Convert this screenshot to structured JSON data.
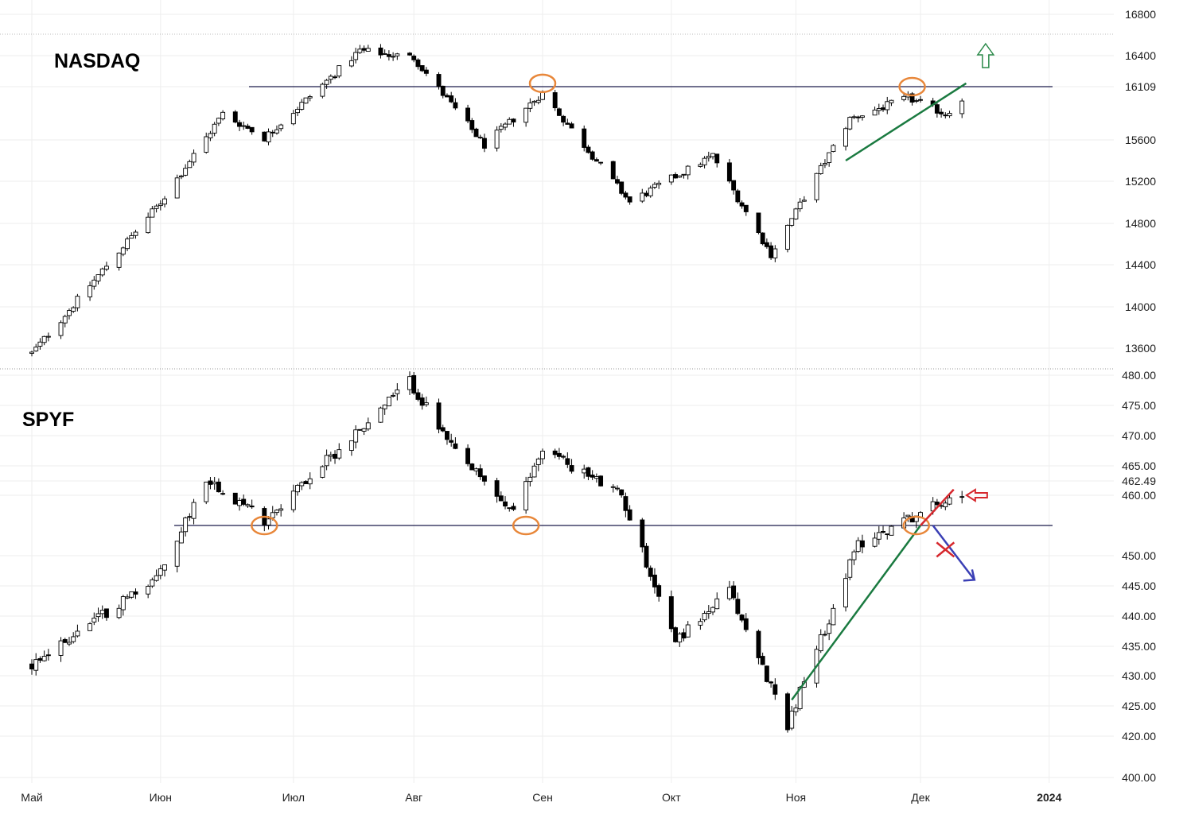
{
  "chart_data": [
    {
      "type": "candlestick",
      "title": "NASDAQ",
      "ylim": [
        13450,
        16850
      ],
      "y_ticks": [
        "16800",
        "16400",
        "16109",
        "15600",
        "15200",
        "14800",
        "14400",
        "14000",
        "13600"
      ],
      "tick_values": [
        16800,
        16400,
        16109,
        15600,
        15200,
        14800,
        14400,
        14000,
        13600
      ],
      "resistance_level": 16109,
      "segments": [
        {
          "start": "2023-05-01",
          "end": "2023-06-01",
          "from": 13550,
          "to": 15000
        },
        {
          "start": "2023-06-01",
          "end": "2023-06-16",
          "from": 15000,
          "to": 15850
        },
        {
          "start": "2023-06-16",
          "end": "2023-06-26",
          "from": 15850,
          "to": 15620
        },
        {
          "start": "2023-06-26",
          "end": "2023-07-19",
          "from": 15620,
          "to": 16450
        },
        {
          "start": "2023-07-19",
          "end": "2023-08-01",
          "from": 16450,
          "to": 16380
        },
        {
          "start": "2023-08-01",
          "end": "2023-08-18",
          "from": 16380,
          "to": 15550
        },
        {
          "start": "2023-08-18",
          "end": "2023-09-01",
          "from": 15550,
          "to": 16050
        },
        {
          "start": "2023-09-01",
          "end": "2023-09-22",
          "from": 16050,
          "to": 15000
        },
        {
          "start": "2023-09-22",
          "end": "2023-10-12",
          "from": 15000,
          "to": 15450
        },
        {
          "start": "2023-10-12",
          "end": "2023-10-26",
          "from": 15450,
          "to": 14500
        },
        {
          "start": "2023-10-26",
          "end": "2023-11-14",
          "from": 14500,
          "to": 15800
        },
        {
          "start": "2023-11-14",
          "end": "2023-11-28",
          "from": 15800,
          "to": 16000
        },
        {
          "start": "2023-11-28",
          "end": "2023-12-07",
          "from": 16000,
          "to": 15850
        },
        {
          "start": "2023-12-07",
          "end": "2023-12-12",
          "from": 15850,
          "to": 16030
        }
      ],
      "trendline": {
        "from": {
          "date": "2023-11-13",
          "value": 15400
        },
        "to": {
          "date": "2023-12-12",
          "value": 16140
        }
      },
      "circles": [
        {
          "date": "2023-09-01",
          "value": 16140
        },
        {
          "date": "2023-11-29",
          "value": 16109
        }
      ],
      "arrow_up": {
        "date": "2023-12-14",
        "value": 16109
      }
    },
    {
      "type": "candlestick",
      "title": "SPYF",
      "ylim": [
        398.0,
        481.5
      ],
      "y_ticks": [
        "480.00",
        "475.00",
        "470.00",
        "465.00",
        "462.49",
        "460.00",
        "450.00",
        "445.00",
        "440.00",
        "435.00",
        "430.00",
        "425.00",
        "420.00",
        "400.00"
      ],
      "tick_values": [
        480,
        475,
        470,
        465,
        462.49,
        460,
        450,
        445,
        440,
        435,
        430,
        425,
        420,
        400
      ],
      "support_level": 455,
      "segments": [
        {
          "start": "2023-05-01",
          "end": "2023-06-01",
          "from": 432,
          "to": 447
        },
        {
          "start": "2023-06-01",
          "end": "2023-06-12",
          "from": 447,
          "to": 463
        },
        {
          "start": "2023-06-12",
          "end": "2023-06-26",
          "from": 463,
          "to": 456
        },
        {
          "start": "2023-06-26",
          "end": "2023-07-31",
          "from": 456,
          "to": 479
        },
        {
          "start": "2023-07-31",
          "end": "2023-08-10",
          "from": 479,
          "to": 468
        },
        {
          "start": "2023-08-10",
          "end": "2023-08-25",
          "from": 468,
          "to": 457
        },
        {
          "start": "2023-08-25",
          "end": "2023-09-01",
          "from": 457,
          "to": 468
        },
        {
          "start": "2023-09-01",
          "end": "2023-09-20",
          "from": 468,
          "to": 460
        },
        {
          "start": "2023-09-20",
          "end": "2023-10-03",
          "from": 460,
          "to": 436
        },
        {
          "start": "2023-10-03",
          "end": "2023-10-16",
          "from": 436,
          "to": 444
        },
        {
          "start": "2023-10-16",
          "end": "2023-10-30",
          "from": 444,
          "to": 422
        },
        {
          "start": "2023-10-30",
          "end": "2023-11-16",
          "from": 422,
          "to": 452
        },
        {
          "start": "2023-11-16",
          "end": "2023-12-12",
          "from": 452,
          "to": 461
        }
      ],
      "trendline": {
        "from": {
          "date": "2023-10-31",
          "value": 426
        },
        "to": {
          "date": "2023-12-01",
          "value": 455
        }
      },
      "red_line": {
        "from": {
          "date": "2023-12-01",
          "value": 455
        },
        "to": {
          "date": "2023-12-09",
          "value": 461
        }
      },
      "blue_arrow": {
        "from": {
          "date": "2023-12-04",
          "value": 455
        },
        "to": {
          "date": "2023-12-14",
          "value": 446
        }
      },
      "cross": {
        "date": "2023-12-07",
        "value": 451
      },
      "circles": [
        {
          "date": "2023-06-26",
          "value": 455
        },
        {
          "date": "2023-08-28",
          "value": 455
        },
        {
          "date": "2023-11-30",
          "value": 455
        }
      ],
      "arrow_left": {
        "date": "2023-12-14",
        "value": 460
      }
    }
  ],
  "x_axis": {
    "labels": [
      {
        "text": "Май",
        "date": "2023-05-01"
      },
      {
        "text": "Июн",
        "date": "2023-06-01"
      },
      {
        "text": "Июл",
        "date": "2023-07-03"
      },
      {
        "text": "Авг",
        "date": "2023-08-01"
      },
      {
        "text": "Сен",
        "date": "2023-09-01"
      },
      {
        "text": "Окт",
        "date": "2023-10-02"
      },
      {
        "text": "Ноя",
        "date": "2023-11-01"
      },
      {
        "text": "Дек",
        "date": "2023-12-01"
      },
      {
        "text": "2024",
        "date": "2024-01-01"
      }
    ]
  },
  "colors": {
    "background": "#ffffff",
    "candle_up_body": "#ffffff",
    "candle_down_body": "#000000",
    "wick": "#000000",
    "level_line": "#1a1a4a",
    "trendline": "#1a7a40",
    "circle": "#e8873a",
    "arrow_up": "#2b8a4a",
    "arrow_left": "#d6282e",
    "red_line": "#d6282e",
    "blue_arrow": "#3a3fb5",
    "cross": "#d6282e",
    "grid": "#eeeeee"
  }
}
